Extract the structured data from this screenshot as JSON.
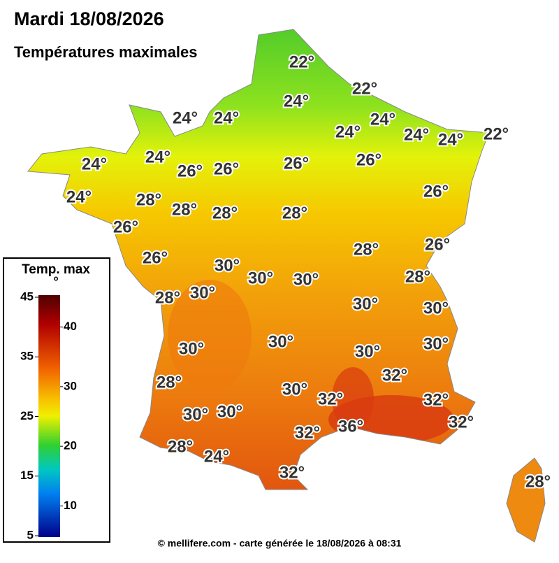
{
  "header": {
    "title": "Mardi 18/08/2026",
    "subtitle": "Températures maximales"
  },
  "legend": {
    "title": "Temp. max °",
    "ticks_left": [
      45,
      35,
      25,
      15,
      5
    ],
    "ticks_right": [
      40,
      30,
      20,
      10
    ]
  },
  "labels": [
    "22°",
    "22°",
    "24°",
    "24°",
    "24°",
    "24°",
    "24°",
    "24°",
    "24°",
    "22°",
    "24°",
    "24°",
    "26°",
    "26°",
    "26°",
    "26°",
    "26°",
    "24°",
    "28°",
    "28°",
    "28°",
    "28°",
    "26°",
    "28°",
    "26°",
    "26°",
    "30°",
    "30°",
    "30°",
    "28°",
    "28°",
    "30°",
    "30°",
    "30°",
    "30°",
    "30°",
    "30°",
    "30°",
    "32°",
    "28°",
    "30°",
    "32°",
    "32°",
    "30°",
    "30°",
    "32°",
    "32°",
    "36°",
    "28°",
    "24°",
    "32°",
    "28°"
  ],
  "footer": "© mellifere.com - carte générée le 18/08/2026 à 08:31"
}
